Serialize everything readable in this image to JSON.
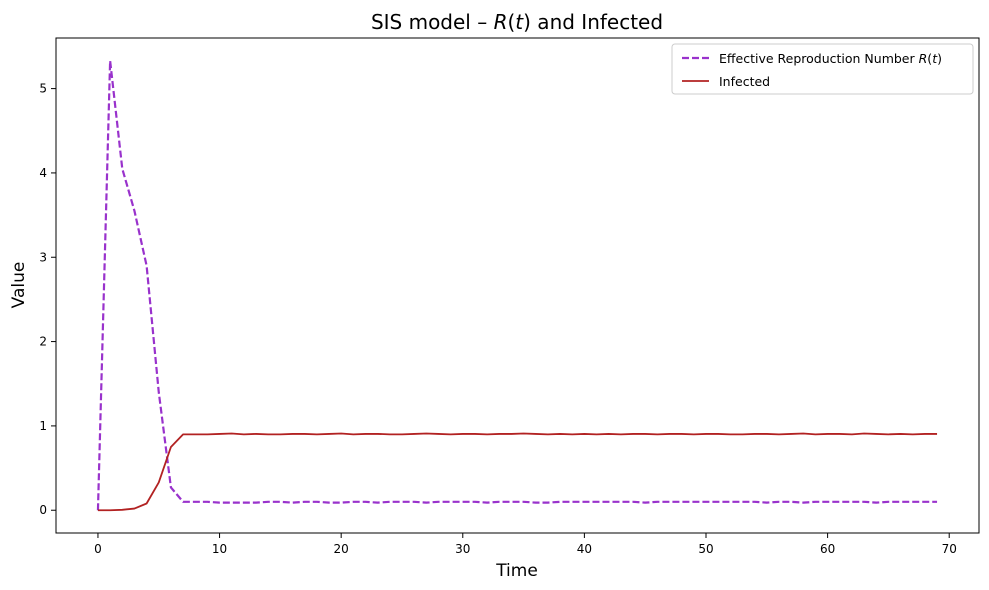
{
  "chart_data": {
    "type": "line",
    "title": "SIS model – R(t) and Infected",
    "title_parts": {
      "prefix": "SIS model – ",
      "r": "R",
      "t_open": "(",
      "t": "t",
      "t_close": ")",
      "suffix": " and Infected"
    },
    "xlabel": "Time",
    "ylabel": "Value",
    "xlim": [
      -3.45,
      72.45
    ],
    "ylim": [
      -0.27,
      5.6
    ],
    "xticks": [
      0,
      10,
      20,
      30,
      40,
      50,
      60,
      70
    ],
    "yticks": [
      0,
      1,
      2,
      3,
      4,
      5
    ],
    "grid": false,
    "legend": {
      "position": "top-right",
      "entries": [
        {
          "prefix": "Effective Reproduction Number ",
          "r": "R",
          "t_open": "(",
          "t": "t",
          "t_close": ")"
        },
        {
          "label": "Infected"
        }
      ]
    },
    "colors": {
      "r_series": "#9932CC",
      "infected_series": "#B22222"
    },
    "series": [
      {
        "name": "Effective Reproduction Number R(t)",
        "style": "dashed",
        "x": [
          0,
          1,
          2,
          3,
          4,
          5,
          6,
          7,
          8,
          9,
          10,
          11,
          12,
          13,
          14,
          15,
          16,
          17,
          18,
          19,
          20,
          21,
          22,
          23,
          24,
          25,
          26,
          27,
          28,
          29,
          30,
          31,
          32,
          33,
          34,
          35,
          36,
          37,
          38,
          39,
          40,
          41,
          42,
          43,
          44,
          45,
          46,
          47,
          48,
          49,
          50,
          51,
          52,
          53,
          54,
          55,
          56,
          57,
          58,
          59,
          60,
          61,
          62,
          63,
          64,
          65,
          66,
          67,
          68,
          69
        ],
        "values": [
          0.0,
          5.33,
          4.05,
          3.55,
          2.9,
          1.4,
          0.27,
          0.1,
          0.1,
          0.1,
          0.09,
          0.09,
          0.09,
          0.09,
          0.1,
          0.1,
          0.09,
          0.1,
          0.1,
          0.09,
          0.09,
          0.1,
          0.1,
          0.09,
          0.1,
          0.1,
          0.1,
          0.09,
          0.1,
          0.1,
          0.1,
          0.1,
          0.09,
          0.1,
          0.1,
          0.1,
          0.09,
          0.09,
          0.1,
          0.1,
          0.1,
          0.1,
          0.1,
          0.1,
          0.1,
          0.09,
          0.1,
          0.1,
          0.1,
          0.1,
          0.1,
          0.1,
          0.1,
          0.1,
          0.1,
          0.09,
          0.1,
          0.1,
          0.09,
          0.1,
          0.1,
          0.1,
          0.1,
          0.1,
          0.09,
          0.1,
          0.1,
          0.1,
          0.1,
          0.1
        ]
      },
      {
        "name": "Infected",
        "style": "solid",
        "x": [
          0,
          1,
          2,
          3,
          4,
          5,
          6,
          7,
          8,
          9,
          10,
          11,
          12,
          13,
          14,
          15,
          16,
          17,
          18,
          19,
          20,
          21,
          22,
          23,
          24,
          25,
          26,
          27,
          28,
          29,
          30,
          31,
          32,
          33,
          34,
          35,
          36,
          37,
          38,
          39,
          40,
          41,
          42,
          43,
          44,
          45,
          46,
          47,
          48,
          49,
          50,
          51,
          52,
          53,
          54,
          55,
          56,
          57,
          58,
          59,
          60,
          61,
          62,
          63,
          64,
          65,
          66,
          67,
          68,
          69
        ],
        "values": [
          0.0,
          0.0,
          0.005,
          0.02,
          0.08,
          0.33,
          0.75,
          0.9,
          0.9,
          0.9,
          0.905,
          0.91,
          0.9,
          0.905,
          0.9,
          0.9,
          0.905,
          0.905,
          0.9,
          0.905,
          0.91,
          0.9,
          0.905,
          0.905,
          0.9,
          0.9,
          0.905,
          0.91,
          0.905,
          0.9,
          0.905,
          0.905,
          0.9,
          0.905,
          0.905,
          0.91,
          0.905,
          0.9,
          0.905,
          0.9,
          0.905,
          0.9,
          0.905,
          0.9,
          0.905,
          0.905,
          0.9,
          0.905,
          0.905,
          0.9,
          0.905,
          0.905,
          0.9,
          0.9,
          0.905,
          0.905,
          0.9,
          0.905,
          0.91,
          0.9,
          0.905,
          0.905,
          0.9,
          0.91,
          0.905,
          0.9,
          0.905,
          0.9,
          0.905,
          0.905
        ]
      }
    ]
  }
}
